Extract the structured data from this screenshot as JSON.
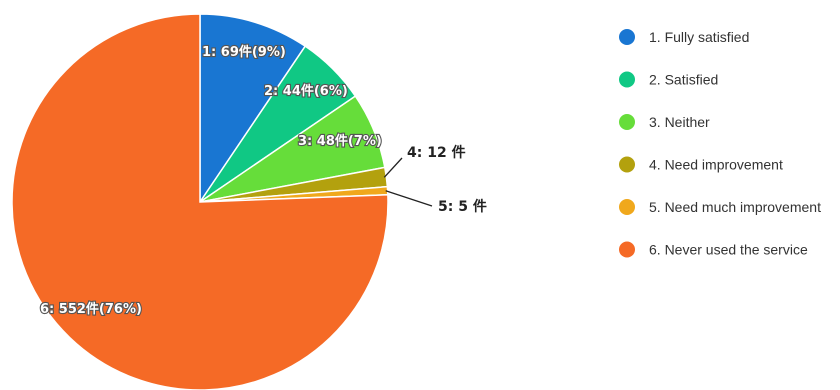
{
  "chart_data": {
    "type": "pie",
    "title": "",
    "slices": [
      {
        "label": "1. Fully satisfied",
        "value": 69,
        "data_label": "1: 69件(9%)",
        "color": "#1976d2"
      },
      {
        "label": "2. Satisfied",
        "value": 44,
        "data_label": "2: 44件(6%)",
        "color": "#10c884"
      },
      {
        "label": "3. Neither",
        "value": 48,
        "data_label": "3: 48件(7%)",
        "color": "#66dd3a"
      },
      {
        "label": "4. Need improvement",
        "value": 12,
        "data_label": "4: 12 件",
        "color": "#b3a10e"
      },
      {
        "label": "5. Need much improvement",
        "value": 5,
        "data_label": "5: 5 件",
        "color": "#f0a81c"
      },
      {
        "label": "6. Never used the service",
        "value": 552,
        "data_label": "6: 552件(76%)",
        "color": "#f56a26"
      }
    ],
    "legend_position": "right"
  }
}
